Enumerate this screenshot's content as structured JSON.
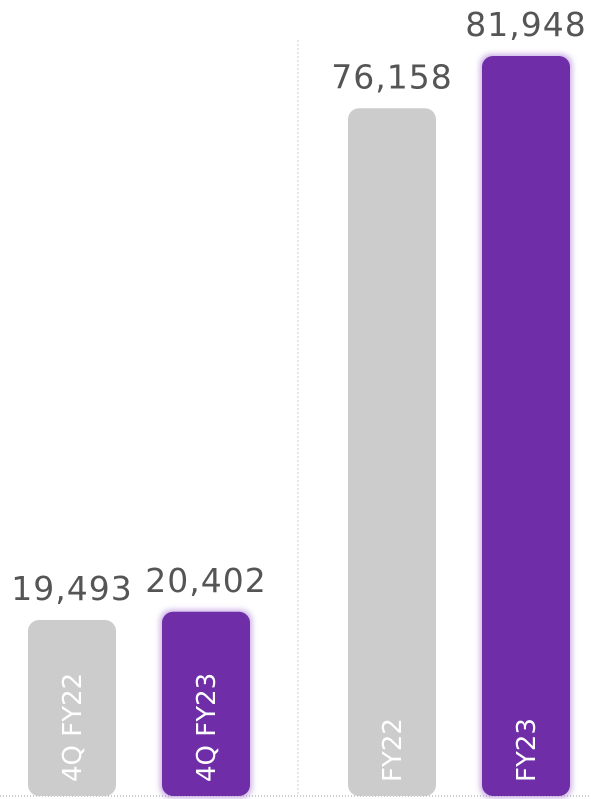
{
  "chart_data": {
    "type": "bar",
    "categories": [
      "4Q FY22",
      "4Q FY23",
      "FY22",
      "FY23"
    ],
    "values": [
      19493,
      20402,
      76158,
      81948
    ],
    "value_labels": [
      "19,493",
      "20,402",
      "76,158",
      "81,948"
    ],
    "colors": [
      "#cccccc",
      "#6f2da8",
      "#cccccc",
      "#6f2da8"
    ],
    "groups": [
      [
        "4Q FY22",
        "4Q FY23"
      ],
      [
        "FY22",
        "FY23"
      ]
    ],
    "grid": false,
    "title": "",
    "xlabel": "",
    "ylabel": ""
  }
}
